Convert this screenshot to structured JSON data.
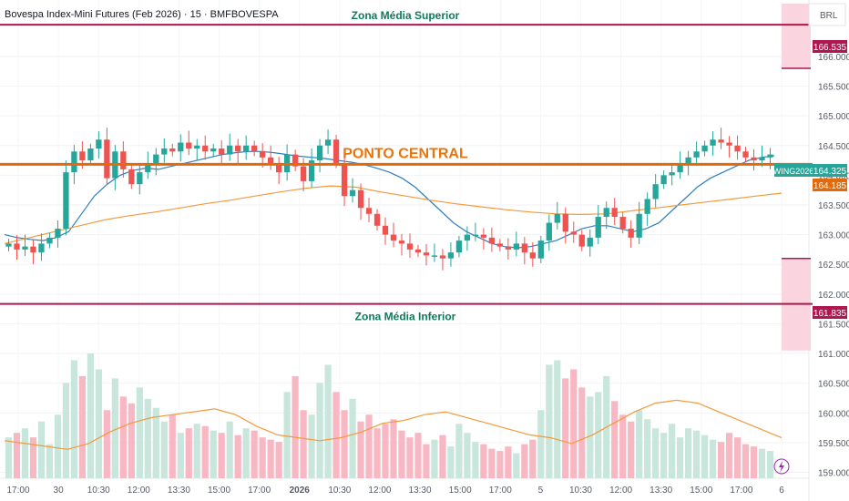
{
  "header": {
    "symbol_title": "Bovespa Index-Mini Futures (Feb 2026) · 15 · BMFBOVESPA",
    "currency": "BRL"
  },
  "annotations": {
    "upper_zone_label": "Zona Média Superior",
    "lower_zone_label": "Zona Média Inferior",
    "center_label": "PONTO CENTRAL"
  },
  "price_tags": {
    "upper": "166.535",
    "current_symbol": "WING2026",
    "current": "164.325",
    "center": "164.185",
    "lower": "161.835"
  },
  "colors": {
    "up": "#26a69a",
    "down": "#ef5350",
    "volume_up": "#c8e6dc",
    "volume_down": "#f7b7c3",
    "upper_zone_line": "#b0174f",
    "center_line": "#e06a0c",
    "center_label": "#e8740c",
    "zone_label": "#0f7a5a",
    "ma_fast": "#2f7fc1",
    "ma_slow": "#f39a3c",
    "zone_fill": "#fad4de"
  },
  "footer": {
    "lightning_icon": "lightning-icon"
  },
  "chart_data": {
    "type": "candlestick",
    "title": "Bovespa Index-Mini Futures (Feb 2026) · 15 · BMFBOVESPA",
    "ylabel": "BRL",
    "ylim": [
      158.9,
      166.95
    ],
    "y_ticks": [
      "159.000",
      "159.500",
      "160.000",
      "160.500",
      "161.000",
      "161.500",
      "162.000",
      "162.500",
      "163.000",
      "163.500",
      "164.000",
      "164.500",
      "165.000",
      "165.500",
      "166.000"
    ],
    "x_ticks": [
      "17:00",
      "30",
      "10:30",
      "12:00",
      "13:30",
      "15:00",
      "17:00",
      "2026",
      "10:30",
      "12:00",
      "13:30",
      "15:00",
      "17:00",
      "5",
      "10:30",
      "12:00",
      "13:30",
      "15:00",
      "17:00",
      "6"
    ],
    "horizontal_levels": [
      {
        "name": "Zona Média Superior",
        "value": 166.535
      },
      {
        "name": "PONTO CENTRAL",
        "value": 164.185
      },
      {
        "name": "Zona Média Inferior",
        "value": 161.835
      }
    ],
    "last_price": 164.325,
    "candles_close": [
      162.85,
      162.75,
      162.8,
      162.7,
      162.85,
      162.95,
      163.1,
      164.05,
      164.4,
      164.25,
      164.45,
      164.6,
      163.95,
      164.4,
      164.1,
      163.85,
      164.05,
      164.2,
      164.35,
      164.45,
      164.4,
      164.55,
      164.45,
      164.5,
      164.4,
      164.45,
      164.35,
      164.5,
      164.4,
      164.5,
      164.4,
      164.3,
      164.2,
      164.05,
      164.35,
      164.15,
      163.9,
      164.25,
      164.5,
      164.6,
      164.2,
      163.65,
      163.75,
      163.45,
      163.35,
      163.15,
      163.0,
      162.9,
      162.85,
      162.75,
      162.7,
      162.65,
      162.65,
      162.6,
      162.7,
      162.9,
      163.0,
      163.0,
      162.95,
      162.85,
      162.8,
      162.75,
      162.85,
      162.7,
      162.6,
      162.9,
      163.2,
      163.35,
      163.05,
      163.0,
      162.8,
      162.95,
      163.3,
      163.45,
      163.3,
      163.1,
      162.95,
      163.35,
      163.6,
      163.85,
      164.0,
      164.05,
      164.2,
      164.3,
      164.4,
      164.5,
      164.6,
      164.55,
      164.5,
      164.4,
      164.3,
      164.25,
      164.3,
      164.35
    ],
    "volume": [
      18,
      20,
      22,
      18,
      25,
      15,
      28,
      42,
      52,
      45,
      55,
      48,
      30,
      44,
      36,
      33,
      40,
      35,
      31,
      25,
      28,
      20,
      22,
      24,
      23,
      21,
      20,
      25,
      19,
      22,
      21,
      18,
      17,
      16,
      38,
      45,
      30,
      28,
      42,
      50,
      38,
      30,
      35,
      25,
      28,
      22,
      24,
      26,
      21,
      18,
      20,
      15,
      17,
      19,
      14,
      24,
      20,
      16,
      15,
      13,
      12,
      14,
      11,
      15,
      17,
      30,
      50,
      52,
      44,
      48,
      40,
      36,
      38,
      45,
      34,
      28,
      25,
      30,
      26,
      22,
      20,
      24,
      18,
      22,
      21,
      19,
      17,
      16,
      20,
      18,
      15,
      14,
      13,
      12
    ],
    "ma_fast": [
      163.0,
      162.95,
      162.92,
      162.9,
      162.95,
      163.05,
      163.35,
      163.65,
      163.85,
      164.0,
      164.08,
      164.12,
      164.1,
      164.15,
      164.2,
      164.25,
      164.3,
      164.35,
      164.38,
      164.4,
      164.4,
      164.38,
      164.35,
      164.32,
      164.3,
      164.28,
      164.25,
      164.22,
      164.18,
      164.12,
      164.05,
      163.95,
      163.8,
      163.6,
      163.4,
      163.2,
      163.05,
      162.95,
      162.85,
      162.8,
      162.78,
      162.8,
      162.85,
      162.9,
      163.0,
      163.1,
      163.15,
      163.15,
      163.1,
      163.05,
      163.1,
      163.2,
      163.4,
      163.6,
      163.8,
      163.95,
      164.05,
      164.15,
      164.25,
      164.3,
      164.33
    ],
    "ma_slow": [
      162.85,
      162.95,
      163.05,
      163.15,
      163.25,
      163.32,
      163.38,
      163.45,
      163.52,
      163.58,
      163.65,
      163.72,
      163.78,
      163.82,
      163.8,
      163.72,
      163.65,
      163.58,
      163.52,
      163.47,
      163.42,
      163.38,
      163.35,
      163.34,
      163.35,
      163.4,
      163.45,
      163.5,
      163.55,
      163.6,
      163.65,
      163.7
    ],
    "volume_ma": [
      13,
      12,
      11,
      10,
      12,
      16,
      19,
      21,
      22,
      23,
      24,
      22,
      18,
      15,
      14,
      13,
      14,
      16,
      19,
      20,
      22,
      23,
      21,
      19,
      17,
      15,
      14,
      12,
      15,
      19,
      23,
      26,
      27,
      26,
      23,
      20,
      17,
      14
    ]
  }
}
